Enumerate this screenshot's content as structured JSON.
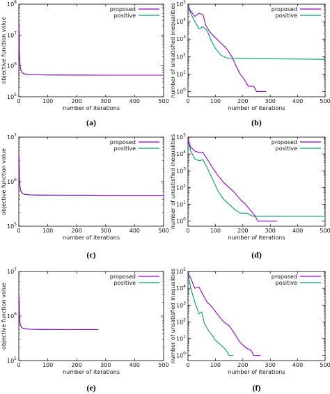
{
  "colors": {
    "proposed": "#9400d3",
    "positive": "#009e73"
  },
  "chart_data": [
    {
      "id": "a",
      "panel_label": "(a)",
      "type": "line",
      "yscale": "log",
      "xlim": [
        0,
        500
      ],
      "ylim": [
        100000,
        100000000
      ],
      "xticks": [
        0,
        100,
        200,
        300,
        400,
        500
      ],
      "yticks": [
        100000,
        1000000,
        10000000,
        100000000
      ],
      "ytick_labels": [
        "10^5",
        "10^6",
        "10^7",
        "10^8"
      ],
      "xlabel": "number of iterations",
      "ylabel": "objective function value",
      "legend_position": "top-right",
      "series": [
        {
          "name": "proposed",
          "color": "#9400d3",
          "x": [
            1,
            2,
            3,
            5,
            8,
            12,
            20,
            40,
            80,
            150,
            300,
            500
          ],
          "y": [
            25000000,
            3000000,
            1500000,
            900000,
            700000,
            600000,
            550000,
            520000,
            510000,
            505000,
            500000,
            500000
          ]
        },
        {
          "name": "positive",
          "color": "#009e73",
          "x": [
            1,
            2,
            3,
            5,
            8,
            12,
            20,
            40,
            80,
            150,
            300,
            500
          ],
          "y": [
            25000000,
            3000000,
            1500000,
            900000,
            700000,
            600000,
            550000,
            520000,
            510000,
            505000,
            500000,
            500000
          ]
        }
      ]
    },
    {
      "id": "b",
      "panel_label": "(b)",
      "type": "line",
      "yscale": "log",
      "xlim": [
        0,
        500
      ],
      "ylim": [
        0.5,
        100000
      ],
      "xticks": [
        0,
        100,
        200,
        300,
        400,
        500
      ],
      "yticks": [
        1,
        10,
        100,
        1000,
        10000,
        100000
      ],
      "ytick_labels": [
        "10^0",
        "10^1",
        "10^2",
        "10^3",
        "10^4",
        "10^5"
      ],
      "xlabel": "number of iterations",
      "ylabel": "number of unsatisfied inequalities",
      "legend_position": "top-right",
      "series": [
        {
          "name": "proposed",
          "color": "#9400d3",
          "x": [
            0,
            10,
            25,
            40,
            55,
            65,
            80,
            100,
            120,
            140,
            160,
            175,
            190,
            205,
            220,
            240,
            250,
            285
          ],
          "y": [
            80000,
            40000,
            20000,
            30000,
            25000,
            6000,
            2500,
            1200,
            600,
            300,
            100,
            30,
            10,
            5,
            2,
            2,
            1,
            1
          ]
        },
        {
          "name": "positive",
          "color": "#009e73",
          "x": [
            0,
            10,
            25,
            40,
            55,
            70,
            85,
            100,
            120,
            140,
            160,
            200,
            300,
            400,
            500
          ],
          "y": [
            80000,
            30000,
            10000,
            4000,
            5000,
            3000,
            800,
            300,
            120,
            85,
            80,
            78,
            75,
            72,
            70
          ]
        }
      ]
    },
    {
      "id": "c",
      "panel_label": "(c)",
      "type": "line",
      "yscale": "log",
      "xlim": [
        0,
        500
      ],
      "ylim": [
        100000,
        10000000
      ],
      "xticks": [
        0,
        100,
        200,
        300,
        400,
        500
      ],
      "yticks": [
        100000,
        1000000,
        10000000
      ],
      "ytick_labels": [
        "10^5",
        "10^6",
        "10^7"
      ],
      "xlabel": "number of iterations",
      "ylabel": "objective function value",
      "legend_position": "top-right",
      "series": [
        {
          "name": "proposed",
          "color": "#9400d3",
          "x": [
            1,
            2,
            3,
            5,
            8,
            12,
            20,
            40,
            80,
            150,
            300,
            500
          ],
          "y": [
            3800000,
            1300000,
            900000,
            700000,
            600000,
            550000,
            520000,
            505000,
            500000,
            498000,
            495000,
            495000
          ]
        },
        {
          "name": "positive",
          "color": "#009e73",
          "x": [
            1,
            2,
            3,
            5,
            8,
            12,
            20,
            40,
            80,
            150,
            300,
            500
          ],
          "y": [
            3800000,
            1300000,
            900000,
            700000,
            600000,
            550000,
            520000,
            505000,
            500000,
            498000,
            495000,
            495000
          ]
        }
      ]
    },
    {
      "id": "d",
      "panel_label": "(d)",
      "type": "line",
      "yscale": "log",
      "xlim": [
        0,
        500
      ],
      "ylim": [
        0.5,
        100000
      ],
      "xticks": [
        0,
        100,
        200,
        300,
        400,
        500
      ],
      "yticks": [
        1,
        10,
        100,
        1000,
        10000,
        100000
      ],
      "ytick_labels": [
        "10^0",
        "10^1",
        "10^2",
        "10^3",
        "10^4",
        "10^5"
      ],
      "xlabel": "number of iterations",
      "ylabel": "number of unsatisfied inequalities",
      "legend_position": "top-right",
      "series": [
        {
          "name": "proposed",
          "color": "#9400d3",
          "x": [
            0,
            10,
            25,
            40,
            55,
            70,
            90,
            110,
            130,
            150,
            170,
            190,
            210,
            230,
            245,
            255,
            325
          ],
          "y": [
            80000,
            25000,
            15000,
            12000,
            12000,
            5000,
            1500,
            500,
            200,
            100,
            50,
            20,
            10,
            4,
            2,
            1,
            1
          ]
        },
        {
          "name": "positive",
          "color": "#009e73",
          "x": [
            0,
            10,
            25,
            40,
            55,
            70,
            90,
            110,
            130,
            150,
            170,
            190,
            215,
            235,
            248,
            255,
            350,
            500
          ],
          "y": [
            80000,
            15000,
            5000,
            4000,
            4500,
            1500,
            300,
            60,
            20,
            10,
            5,
            3,
            3,
            2,
            2,
            2,
            2,
            2
          ]
        }
      ]
    },
    {
      "id": "e",
      "panel_label": "(e)",
      "type": "line",
      "yscale": "log",
      "xlim": [
        0,
        500
      ],
      "ylim": [
        100000,
        10000000
      ],
      "xticks": [
        0,
        100,
        200,
        300,
        400,
        500
      ],
      "yticks": [
        100000,
        1000000,
        10000000
      ],
      "ytick_labels": [
        "10^5",
        "10^6",
        "10^7"
      ],
      "xlabel": "number of iterations",
      "ylabel": "objective function value",
      "legend_position": "top-right",
      "series": [
        {
          "name": "proposed",
          "color": "#9400d3",
          "x": [
            1,
            2,
            3,
            5,
            8,
            12,
            20,
            40,
            80,
            150,
            200,
            275
          ],
          "y": [
            2800000,
            1100000,
            800000,
            650000,
            580000,
            540000,
            520000,
            505000,
            500000,
            498000,
            497000,
            497000
          ]
        },
        {
          "name": "positive",
          "color": "#009e73",
          "x": [
            1,
            2,
            3,
            5,
            8,
            12,
            20,
            40,
            80,
            120,
            160
          ],
          "y": [
            2800000,
            1100000,
            800000,
            650000,
            580000,
            540000,
            520000,
            505000,
            500000,
            498000,
            497000
          ]
        }
      ]
    },
    {
      "id": "f",
      "panel_label": "(f)",
      "type": "line",
      "yscale": "log",
      "xlim": [
        0,
        500
      ],
      "ylim": [
        0.5,
        100000
      ],
      "xticks": [
        0,
        100,
        200,
        300,
        400,
        500
      ],
      "yticks": [
        1,
        10,
        100,
        1000,
        10000,
        100000
      ],
      "ytick_labels": [
        "10^0",
        "10^1",
        "10^2",
        "10^3",
        "10^4",
        "10^5"
      ],
      "xlabel": "number of iterations",
      "ylabel": "number of unsatisfied inequalities",
      "legend_position": "top-right",
      "series": [
        {
          "name": "proposed",
          "color": "#9400d3",
          "x": [
            0,
            10,
            25,
            40,
            55,
            70,
            90,
            110,
            130,
            150,
            170,
            190,
            210,
            230,
            240,
            265
          ],
          "y": [
            80000,
            40000,
            10000,
            12000,
            4000,
            1500,
            700,
            250,
            100,
            60,
            20,
            6,
            3,
            2,
            1,
            1
          ]
        },
        {
          "name": "positive",
          "color": "#009e73",
          "x": [
            0,
            10,
            25,
            40,
            50,
            60,
            75,
            90,
            100,
            115,
            130,
            140,
            150,
            165
          ],
          "y": [
            80000,
            10000,
            1500,
            300,
            400,
            80,
            30,
            15,
            8,
            5,
            3,
            2,
            1,
            1
          ]
        }
      ]
    }
  ]
}
